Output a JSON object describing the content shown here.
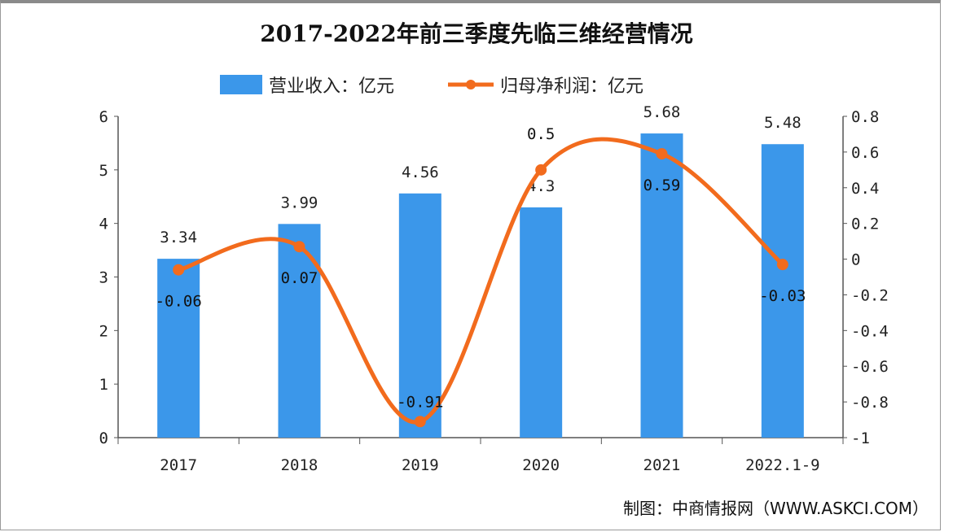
{
  "chart_data": {
    "type": "bar+line",
    "title": "2017-2022年前三季度先临三维经营情况",
    "categories": [
      "2017",
      "2018",
      "2019",
      "2020",
      "2021",
      "2022.1-9"
    ],
    "series": [
      {
        "name": "营业收入：亿元",
        "type": "bar",
        "axis": "left",
        "values": [
          3.34,
          3.99,
          4.56,
          4.3,
          5.68,
          5.48
        ],
        "color": "#3b97ea"
      },
      {
        "name": "归母净利润：亿元",
        "type": "line",
        "axis": "right",
        "values": [
          -0.06,
          0.07,
          -0.91,
          0.5,
          0.59,
          -0.03
        ],
        "color": "#f26b1d"
      }
    ],
    "left_axis": {
      "ylim": [
        0,
        6
      ],
      "ticks": [
        "0",
        "1",
        "2",
        "3",
        "4",
        "5",
        "6"
      ]
    },
    "right_axis": {
      "ylim": [
        -1,
        0.8
      ],
      "ticks": [
        "-1",
        "-0.8",
        "-0.6",
        "-0.4",
        "-0.2",
        "0",
        "0.2",
        "0.4",
        "0.6",
        "0.8"
      ]
    },
    "legend": "top",
    "grid": false
  },
  "footer": "制图：中商情报网（WWW.ASKCI.COM）"
}
